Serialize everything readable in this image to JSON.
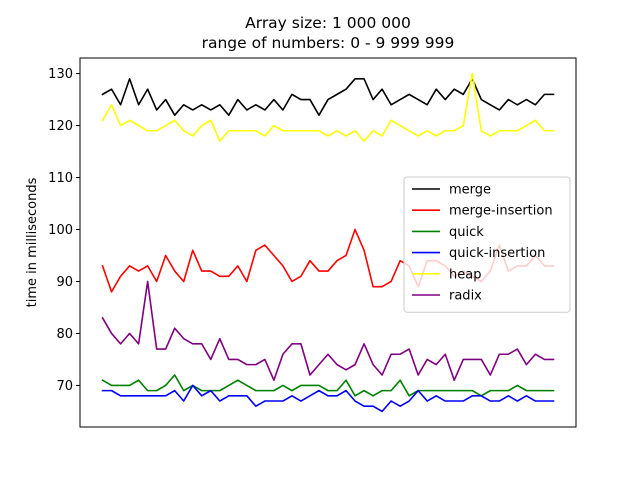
{
  "chart_data": {
    "type": "line",
    "title": "Array size: 1 000 000\nrange of numbers: 0 - 9 999 999",
    "title_lines": [
      "Array size: 1 000 000",
      "range of numbers: 0 - 9 999 999"
    ],
    "xlabel": "",
    "ylabel": "time in milliseconds",
    "ylim": [
      62,
      133
    ],
    "xlim": [
      -2.5,
      52.5
    ],
    "yticks": [
      70,
      80,
      90,
      100,
      110,
      120,
      130
    ],
    "legend_position": "center-right",
    "x": [
      0,
      1,
      2,
      3,
      4,
      5,
      6,
      7,
      8,
      9,
      10,
      11,
      12,
      13,
      14,
      15,
      16,
      17,
      18,
      19,
      20,
      21,
      22,
      23,
      24,
      25,
      26,
      27,
      28,
      29,
      30,
      31,
      32,
      33,
      34,
      35,
      36,
      37,
      38,
      39,
      40,
      41,
      42,
      43,
      44,
      45,
      46,
      47,
      48,
      49,
      50
    ],
    "series": [
      {
        "name": "merge",
        "color": "#000000",
        "values": [
          126,
          127,
          124,
          129,
          124,
          127,
          123,
          125,
          122,
          124,
          123,
          124,
          123,
          124,
          122,
          125,
          123,
          124,
          123,
          125,
          123,
          126,
          125,
          125,
          122,
          125,
          126,
          127,
          129,
          129,
          125,
          127,
          124,
          125,
          126,
          125,
          124,
          127,
          125,
          127,
          126,
          129,
          125,
          124,
          123,
          125,
          124,
          125,
          124,
          126,
          126
        ]
      },
      {
        "name": "merge-insertion",
        "color": "#ff0000",
        "values": [
          93,
          88,
          91,
          93,
          92,
          93,
          90,
          95,
          92,
          90,
          96,
          92,
          92,
          91,
          91,
          93,
          90,
          96,
          97,
          95,
          93,
          90,
          91,
          94,
          92,
          92,
          94,
          95,
          100,
          96,
          89,
          89,
          90,
          94,
          93,
          89,
          94,
          94,
          93,
          91,
          92,
          91,
          90,
          92,
          97,
          92,
          93,
          93,
          95,
          93,
          93
        ]
      },
      {
        "name": "quick",
        "color": "#008000",
        "values": [
          71,
          70,
          70,
          70,
          71,
          69,
          69,
          70,
          72,
          69,
          70,
          69,
          69,
          69,
          70,
          71,
          70,
          69,
          69,
          69,
          70,
          69,
          70,
          70,
          70,
          69,
          69,
          71,
          68,
          69,
          68,
          69,
          69,
          71,
          68,
          69,
          69,
          69,
          69,
          69,
          69,
          69,
          68,
          69,
          69,
          69,
          70,
          69,
          69,
          69,
          69
        ]
      },
      {
        "name": "quick-insertion",
        "color": "#0000ff",
        "values": [
          69,
          69,
          68,
          68,
          68,
          68,
          68,
          68,
          69,
          67,
          70,
          68,
          69,
          67,
          68,
          68,
          68,
          66,
          67,
          67,
          67,
          68,
          67,
          68,
          69,
          68,
          68,
          69,
          67,
          66,
          66,
          65,
          67,
          66,
          67,
          69,
          67,
          68,
          67,
          67,
          67,
          68,
          68,
          67,
          67,
          68,
          67,
          68,
          67,
          67,
          67
        ]
      },
      {
        "name": "heap",
        "color": "#ffff00",
        "values": [
          121,
          124,
          120,
          121,
          120,
          119,
          119,
          120,
          121,
          119,
          118,
          120,
          121,
          117,
          119,
          119,
          119,
          119,
          118,
          120,
          119,
          119,
          119,
          119,
          119,
          118,
          119,
          118,
          119,
          117,
          119,
          118,
          121,
          120,
          119,
          118,
          119,
          118,
          119,
          119,
          120,
          130,
          119,
          118,
          119,
          119,
          119,
          120,
          121,
          119,
          119
        ]
      },
      {
        "name": "radix",
        "color": "#800080",
        "values": [
          83,
          80,
          78,
          80,
          78,
          90,
          77,
          77,
          81,
          79,
          78,
          78,
          75,
          79,
          75,
          75,
          74,
          74,
          75,
          71,
          76,
          78,
          78,
          72,
          74,
          76,
          74,
          73,
          74,
          78,
          74,
          72,
          76,
          76,
          77,
          72,
          75,
          74,
          76,
          71,
          75,
          75,
          75,
          72,
          76,
          76,
          77,
          74,
          76,
          75,
          75
        ]
      }
    ]
  }
}
